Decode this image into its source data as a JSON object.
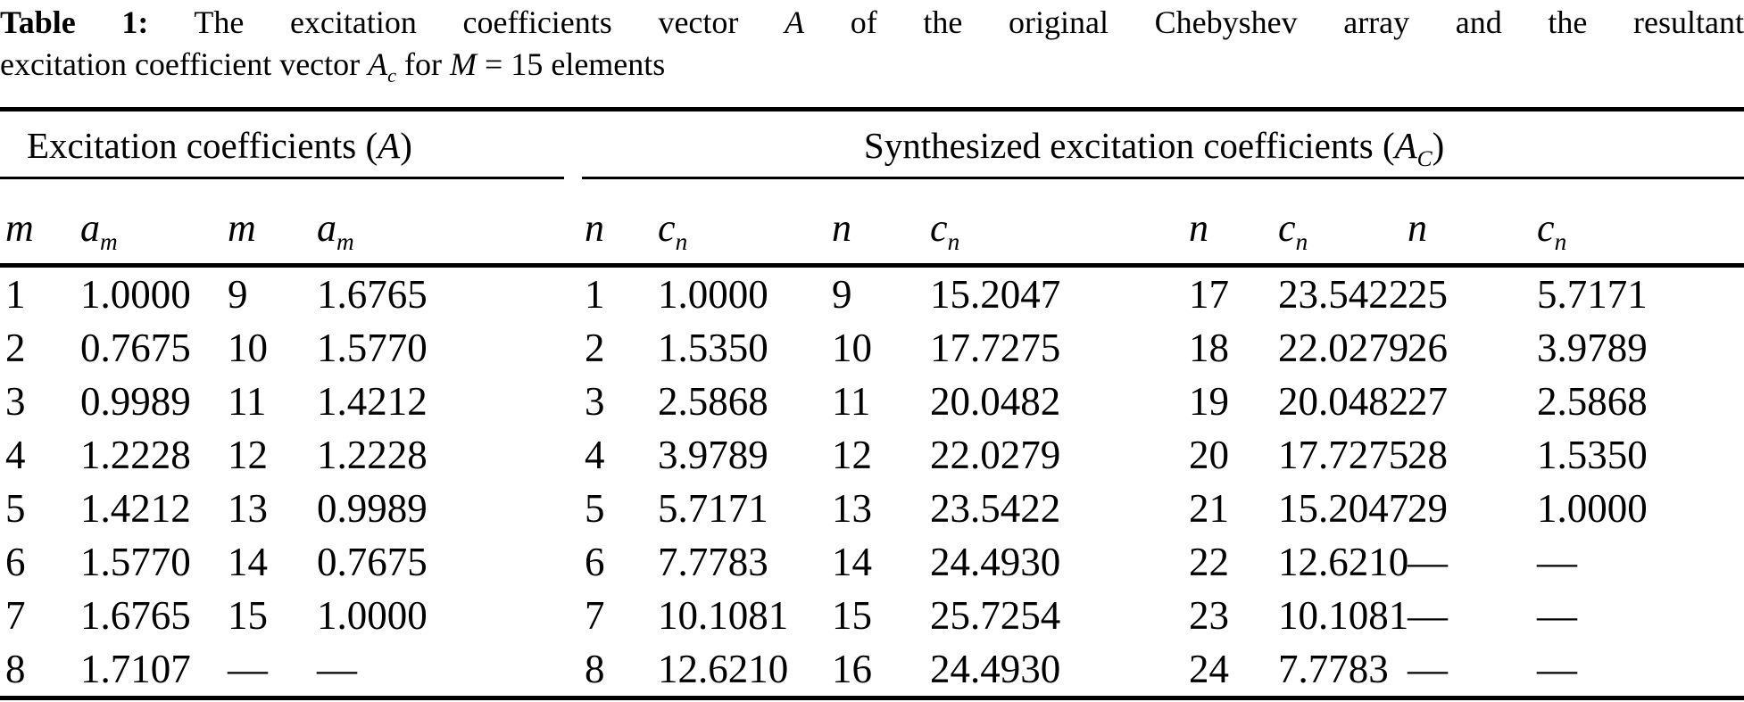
{
  "title": {
    "label": "Table 1:",
    "line1_pre": "The excitation coefficients vector",
    "line1_var": "A",
    "line1_post": "of the original Chebyshev array and the resultant",
    "line2_pre": "excitation coefficient vector",
    "line2_var": "A",
    "line2_sub": "c",
    "line2_mid": "for",
    "line2_var2": "M",
    "line2_post": "= 15 elements"
  },
  "groups": {
    "left": {
      "pre": "Excitation coefficients (",
      "var": "A",
      "post": ")"
    },
    "right": {
      "pre": "Synthesized excitation coefficients (",
      "var": "A",
      "sub": "C",
      "post": ")"
    }
  },
  "chart_data": {
    "type": "table",
    "group_spans": [
      4,
      8
    ],
    "columns": [
      {
        "v": "m"
      },
      {
        "v": "a",
        "s": "m"
      },
      {
        "v": "m"
      },
      {
        "v": "a",
        "s": "m"
      },
      {
        "v": "n"
      },
      {
        "v": "c",
        "s": "n"
      },
      {
        "v": "n"
      },
      {
        "v": "c",
        "s": "n"
      },
      {
        "v": "n"
      },
      {
        "v": "c",
        "s": "n"
      },
      {
        "v": "n"
      },
      {
        "v": "c",
        "s": "n"
      }
    ],
    "rows": [
      [
        "1",
        "1.0000",
        "9",
        "1.6765",
        "1",
        "1.0000",
        "9",
        "15.2047",
        "17",
        "23.5422",
        "25",
        "5.7171"
      ],
      [
        "2",
        "0.7675",
        "10",
        "1.5770",
        "2",
        "1.5350",
        "10",
        "17.7275",
        "18",
        "22.0279",
        "26",
        "3.9789"
      ],
      [
        "3",
        "0.9989",
        "11",
        "1.4212",
        "3",
        "2.5868",
        "11",
        "20.0482",
        "19",
        "20.0482",
        "27",
        "2.5868"
      ],
      [
        "4",
        "1.2228",
        "12",
        "1.2228",
        "4",
        "3.9789",
        "12",
        "22.0279",
        "20",
        "17.7275",
        "28",
        "1.5350"
      ],
      [
        "5",
        "1.4212",
        "13",
        "0.9989",
        "5",
        "5.7171",
        "13",
        "23.5422",
        "21",
        "15.2047",
        "29",
        "1.0000"
      ],
      [
        "6",
        "1.5770",
        "14",
        "0.7675",
        "6",
        "7.7783",
        "14",
        "24.4930",
        "22",
        "12.6210",
        "—",
        "—"
      ],
      [
        "7",
        "1.6765",
        "15",
        "1.0000",
        "7",
        "10.1081",
        "15",
        "25.7254",
        "23",
        "10.1081",
        "—",
        "—"
      ],
      [
        "8",
        "1.7107",
        "—",
        "—",
        "8",
        "12.6210",
        "16",
        "24.4930",
        "24",
        "7.7783",
        "—",
        "—"
      ]
    ]
  }
}
